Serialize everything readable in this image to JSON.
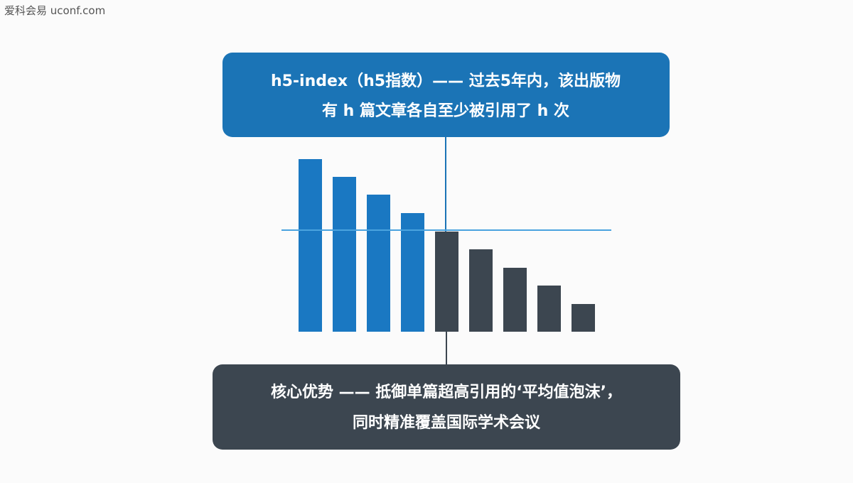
{
  "watermark": "爱科会易 uconf.com",
  "top_callout": {
    "lines": [
      "h5-index（h5指数）—— 过去5年内，该出版物",
      "有 h 篇文章各自至少被引用了 h 次"
    ]
  },
  "bottom_callout": {
    "lines": [
      "核心优势 —— 抵御单篇超高引用的‘平均值泡沫’，",
      "同时精准覆盖国际学术会议"
    ]
  }
}
